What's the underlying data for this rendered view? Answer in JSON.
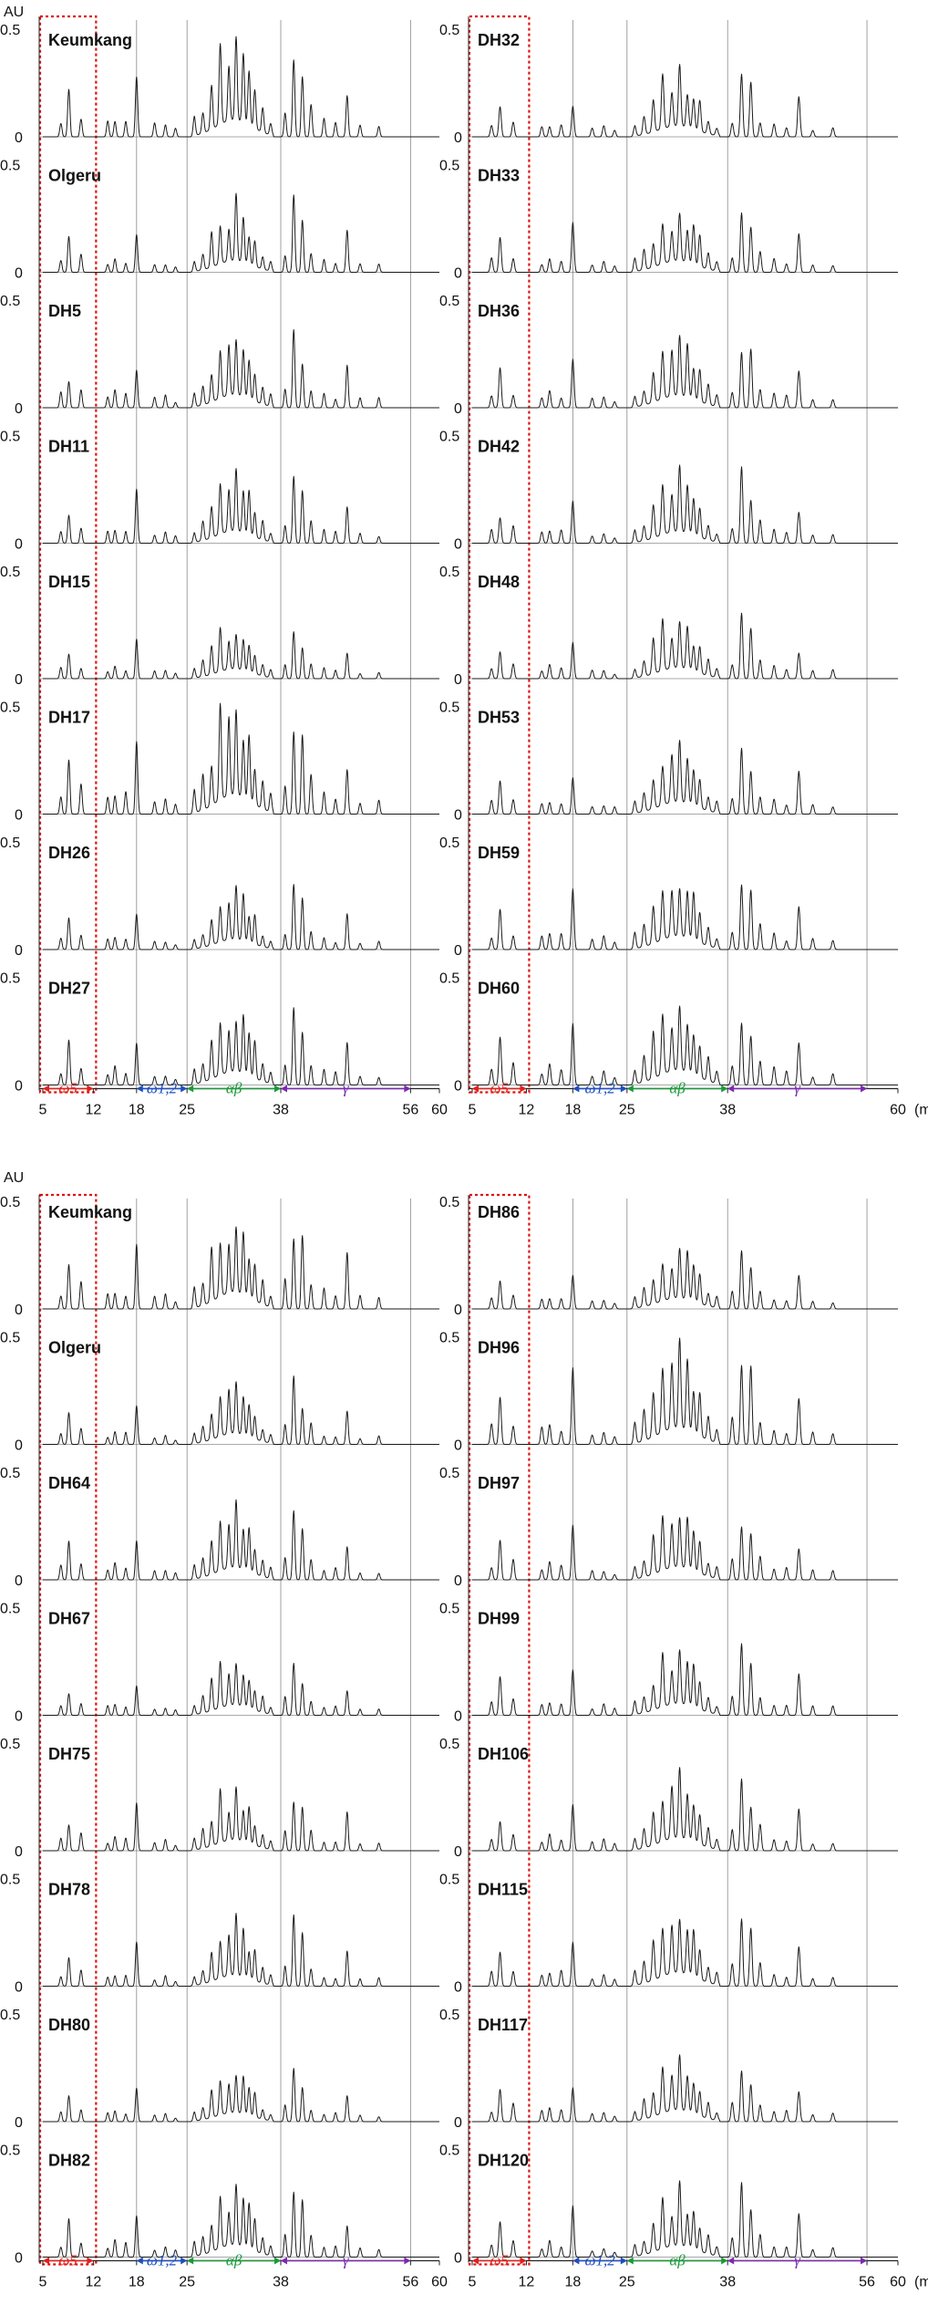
{
  "chart_data": {
    "type": "line",
    "figure_kind": "RP-HPLC chromatograms (gliadin profiles), 2 figure blocks x 2 columns x 8 stacked traces",
    "x_axis_unit_label": "(min)",
    "x_axis_unit_label_truncated": "(mi",
    "y_axis_label": "AU",
    "x_ticks": [
      5,
      12,
      18,
      25,
      38,
      56,
      60
    ],
    "x_ticks_right_panel_top": [
      5,
      12,
      18,
      25,
      38,
      60
    ],
    "y_ticks": [
      0,
      0.5
    ],
    "y_tick_labels": [
      "0",
      "0.5"
    ],
    "xlim": [
      5,
      60
    ],
    "ylim": [
      0,
      0.5
    ],
    "vertical_reference_lines_min": [
      18,
      25,
      38,
      56
    ],
    "highlight_box_min": [
      5,
      12
    ],
    "highlight_box_color": "#e01010",
    "regions": [
      {
        "label": "ω5",
        "from": 5,
        "to": 12,
        "color": "#e0201a"
      },
      {
        "label": "ω1,2",
        "from": 18,
        "to": 25,
        "color": "#1f4fbf"
      },
      {
        "label": "αβ",
        "from": 25,
        "to": 38,
        "color": "#1a9a3a"
      },
      {
        "label": "γ",
        "from": 38,
        "to": 56,
        "color": "#7a2ab0"
      }
    ],
    "peaks_template": [
      [
        7.5,
        0.06
      ],
      [
        8.6,
        0.16
      ],
      [
        10.3,
        0.08
      ],
      [
        14.0,
        0.05
      ],
      [
        15.0,
        0.07
      ],
      [
        16.5,
        0.06
      ],
      [
        18.0,
        0.22
      ],
      [
        20.5,
        0.04
      ],
      [
        22.0,
        0.05
      ],
      [
        23.4,
        0.03
      ],
      [
        26.0,
        0.06
      ],
      [
        27.2,
        0.09
      ],
      [
        28.4,
        0.16
      ],
      [
        29.6,
        0.24
      ],
      [
        30.8,
        0.2
      ],
      [
        31.8,
        0.28
      ],
      [
        32.8,
        0.22
      ],
      [
        33.6,
        0.18
      ],
      [
        34.4,
        0.14
      ],
      [
        35.5,
        0.08
      ],
      [
        36.6,
        0.05
      ],
      [
        38.6,
        0.09
      ],
      [
        39.8,
        0.32
      ],
      [
        41.0,
        0.24
      ],
      [
        42.2,
        0.1
      ],
      [
        44.0,
        0.06
      ],
      [
        45.6,
        0.05
      ],
      [
        47.2,
        0.18
      ],
      [
        49.0,
        0.04
      ],
      [
        51.6,
        0.04
      ]
    ],
    "panels": [
      {
        "figure": 1,
        "column": "left",
        "samples": [
          "Keumkang",
          "Olgeru",
          "DH5",
          "DH11",
          "DH15",
          "DH17",
          "DH26",
          "DH27"
        ],
        "scales": [
          1.3,
          0.9,
          1.0,
          0.95,
          0.75,
          1.5,
          0.8,
          1.05
        ]
      },
      {
        "figure": 1,
        "column": "right",
        "samples": [
          "DH32",
          "DH33",
          "DH36",
          "DH42",
          "DH48",
          "DH53",
          "DH59",
          "DH60"
        ],
        "scales": [
          0.85,
          0.9,
          0.95,
          0.9,
          0.85,
          0.95,
          1.05,
          1.15
        ]
      },
      {
        "figure": 2,
        "column": "left",
        "samples": [
          "Keumkang",
          "Olgeru",
          "DH64",
          "DH67",
          "DH75",
          "DH78",
          "DH80",
          "DH82"
        ],
        "scales": [
          1.3,
          0.85,
          0.95,
          0.8,
          0.85,
          0.85,
          0.7,
          0.95
        ]
      },
      {
        "figure": 2,
        "column": "right",
        "samples": [
          "DH86",
          "DH96",
          "DH97",
          "DH99",
          "DH106",
          "DH115",
          "DH117",
          "DH120"
        ],
        "scales": [
          0.85,
          1.3,
          1.0,
          0.9,
          1.0,
          1.05,
          0.9,
          0.9
        ]
      }
    ]
  }
}
